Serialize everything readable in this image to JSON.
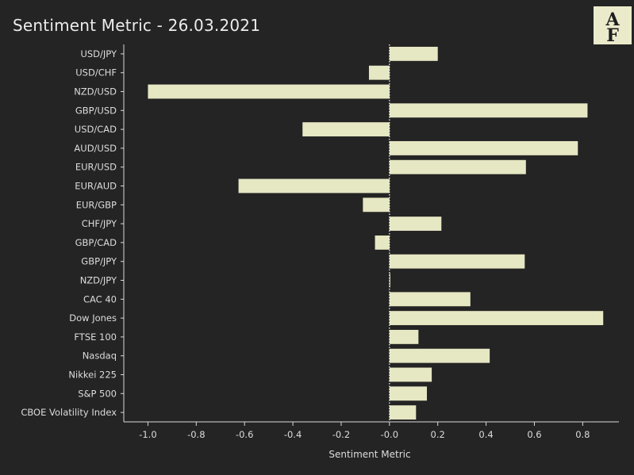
{
  "title": "Sentiment Metric - 26.03.2021",
  "logo": {
    "text": "AF"
  },
  "colors": {
    "background": "#242424",
    "bar": "#e6e7c3",
    "axis": "#d9d9d9",
    "text": "#dcdcdc",
    "zero_line": "#ffffff"
  },
  "chart_data": {
    "type": "bar",
    "orientation": "horizontal",
    "title": "Sentiment Metric - 26.03.2021",
    "xlabel": "Sentiment Metric",
    "ylabel": "",
    "xlim": [
      -1.1,
      0.95
    ],
    "xticks": [
      -1.0,
      -0.8,
      -0.6,
      -0.4,
      -0.2,
      0.0,
      0.2,
      0.4,
      0.6,
      0.8
    ],
    "xtick_labels": [
      "-1.0",
      "-0.8",
      "-0.6",
      "-0.4",
      "-0.2",
      "-0.0",
      "0.2",
      "0.4",
      "0.6",
      "0.8"
    ],
    "grid": false,
    "categories": [
      "USD/JPY",
      "USD/CHF",
      "NZD/USD",
      "GBP/USD",
      "USD/CAD",
      "AUD/USD",
      "EUR/USD",
      "EUR/AUD",
      "EUR/GBP",
      "CHF/JPY",
      "GBP/CAD",
      "GBP/JPY",
      "NZD/JPY",
      "CAC 40",
      "Dow Jones",
      "FTSE 100",
      "Nasdaq",
      "Nikkei 225",
      "S&P 500",
      "CBOE Volatility Index"
    ],
    "values": [
      0.2,
      -0.085,
      -1.0,
      0.82,
      -0.36,
      0.78,
      0.565,
      -0.625,
      -0.11,
      0.215,
      -0.06,
      0.56,
      0.003,
      0.335,
      0.885,
      0.12,
      0.415,
      0.175,
      0.155,
      0.11
    ]
  }
}
